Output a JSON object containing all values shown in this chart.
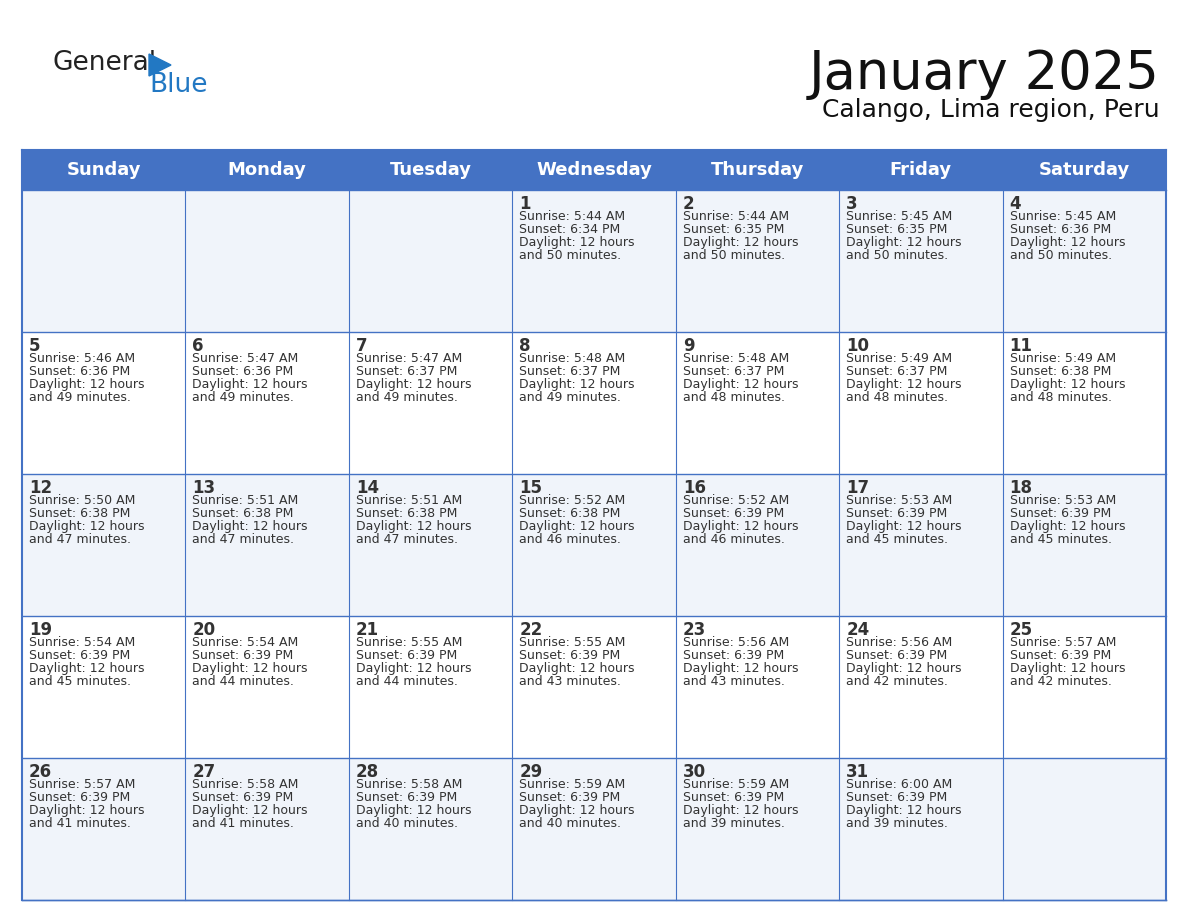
{
  "title": "January 2025",
  "subtitle": "Calango, Lima region, Peru",
  "header_bg": "#4472C4",
  "header_text_color": "#FFFFFF",
  "cell_bg_even": "#FFFFFF",
  "cell_bg_odd": "#F0F4FA",
  "grid_line_color": "#4472C4",
  "day_number_color": "#333333",
  "cell_text_color": "#333333",
  "day_headers": [
    "Sunday",
    "Monday",
    "Tuesday",
    "Wednesday",
    "Thursday",
    "Friday",
    "Saturday"
  ],
  "calendar_data": [
    [
      null,
      null,
      null,
      {
        "day": 1,
        "sunrise": "5:44 AM",
        "sunset": "6:34 PM",
        "daylight": "12 hours and 50 minutes."
      },
      {
        "day": 2,
        "sunrise": "5:44 AM",
        "sunset": "6:35 PM",
        "daylight": "12 hours and 50 minutes."
      },
      {
        "day": 3,
        "sunrise": "5:45 AM",
        "sunset": "6:35 PM",
        "daylight": "12 hours and 50 minutes."
      },
      {
        "day": 4,
        "sunrise": "5:45 AM",
        "sunset": "6:36 PM",
        "daylight": "12 hours and 50 minutes."
      }
    ],
    [
      {
        "day": 5,
        "sunrise": "5:46 AM",
        "sunset": "6:36 PM",
        "daylight": "12 hours and 49 minutes."
      },
      {
        "day": 6,
        "sunrise": "5:47 AM",
        "sunset": "6:36 PM",
        "daylight": "12 hours and 49 minutes."
      },
      {
        "day": 7,
        "sunrise": "5:47 AM",
        "sunset": "6:37 PM",
        "daylight": "12 hours and 49 minutes."
      },
      {
        "day": 8,
        "sunrise": "5:48 AM",
        "sunset": "6:37 PM",
        "daylight": "12 hours and 49 minutes."
      },
      {
        "day": 9,
        "sunrise": "5:48 AM",
        "sunset": "6:37 PM",
        "daylight": "12 hours and 48 minutes."
      },
      {
        "day": 10,
        "sunrise": "5:49 AM",
        "sunset": "6:37 PM",
        "daylight": "12 hours and 48 minutes."
      },
      {
        "day": 11,
        "sunrise": "5:49 AM",
        "sunset": "6:38 PM",
        "daylight": "12 hours and 48 minutes."
      }
    ],
    [
      {
        "day": 12,
        "sunrise": "5:50 AM",
        "sunset": "6:38 PM",
        "daylight": "12 hours and 47 minutes."
      },
      {
        "day": 13,
        "sunrise": "5:51 AM",
        "sunset": "6:38 PM",
        "daylight": "12 hours and 47 minutes."
      },
      {
        "day": 14,
        "sunrise": "5:51 AM",
        "sunset": "6:38 PM",
        "daylight": "12 hours and 47 minutes."
      },
      {
        "day": 15,
        "sunrise": "5:52 AM",
        "sunset": "6:38 PM",
        "daylight": "12 hours and 46 minutes."
      },
      {
        "day": 16,
        "sunrise": "5:52 AM",
        "sunset": "6:39 PM",
        "daylight": "12 hours and 46 minutes."
      },
      {
        "day": 17,
        "sunrise": "5:53 AM",
        "sunset": "6:39 PM",
        "daylight": "12 hours and 45 minutes."
      },
      {
        "day": 18,
        "sunrise": "5:53 AM",
        "sunset": "6:39 PM",
        "daylight": "12 hours and 45 minutes."
      }
    ],
    [
      {
        "day": 19,
        "sunrise": "5:54 AM",
        "sunset": "6:39 PM",
        "daylight": "12 hours and 45 minutes."
      },
      {
        "day": 20,
        "sunrise": "5:54 AM",
        "sunset": "6:39 PM",
        "daylight": "12 hours and 44 minutes."
      },
      {
        "day": 21,
        "sunrise": "5:55 AM",
        "sunset": "6:39 PM",
        "daylight": "12 hours and 44 minutes."
      },
      {
        "day": 22,
        "sunrise": "5:55 AM",
        "sunset": "6:39 PM",
        "daylight": "12 hours and 43 minutes."
      },
      {
        "day": 23,
        "sunrise": "5:56 AM",
        "sunset": "6:39 PM",
        "daylight": "12 hours and 43 minutes."
      },
      {
        "day": 24,
        "sunrise": "5:56 AM",
        "sunset": "6:39 PM",
        "daylight": "12 hours and 42 minutes."
      },
      {
        "day": 25,
        "sunrise": "5:57 AM",
        "sunset": "6:39 PM",
        "daylight": "12 hours and 42 minutes."
      }
    ],
    [
      {
        "day": 26,
        "sunrise": "5:57 AM",
        "sunset": "6:39 PM",
        "daylight": "12 hours and 41 minutes."
      },
      {
        "day": 27,
        "sunrise": "5:58 AM",
        "sunset": "6:39 PM",
        "daylight": "12 hours and 41 minutes."
      },
      {
        "day": 28,
        "sunrise": "5:58 AM",
        "sunset": "6:39 PM",
        "daylight": "12 hours and 40 minutes."
      },
      {
        "day": 29,
        "sunrise": "5:59 AM",
        "sunset": "6:39 PM",
        "daylight": "12 hours and 40 minutes."
      },
      {
        "day": 30,
        "sunrise": "5:59 AM",
        "sunset": "6:39 PM",
        "daylight": "12 hours and 39 minutes."
      },
      {
        "day": 31,
        "sunrise": "6:00 AM",
        "sunset": "6:39 PM",
        "daylight": "12 hours and 39 minutes."
      },
      null
    ]
  ],
  "logo_text1": "General",
  "logo_text2": "Blue",
  "logo_text1_color": "#222222",
  "logo_text2_color": "#2278C3",
  "logo_triangle_color": "#2278C3",
  "title_fontsize": 38,
  "subtitle_fontsize": 18,
  "header_fontsize": 13,
  "day_num_fontsize": 12,
  "cell_fontsize": 9
}
